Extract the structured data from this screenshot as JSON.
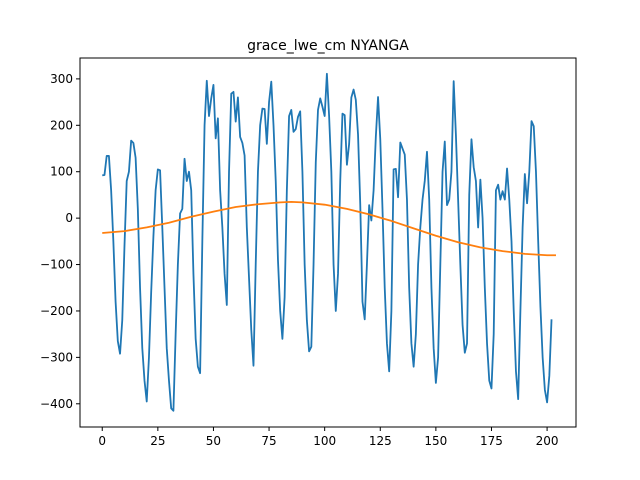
{
  "chart_data": {
    "type": "line",
    "title": "grace_lwe_cm NYANGA",
    "xlabel": "",
    "ylabel": "",
    "xlim": [
      -10,
      213
    ],
    "ylim": [
      -450,
      345
    ],
    "x_ticks": [
      0,
      25,
      50,
      75,
      100,
      125,
      150,
      175,
      200
    ],
    "y_ticks": [
      -400,
      -300,
      -200,
      -100,
      0,
      100,
      200,
      300
    ],
    "grid": false,
    "legend": "none",
    "series": [
      {
        "color": "#1f77b4",
        "points": [
          [
            0,
            92
          ],
          [
            1,
            93
          ],
          [
            2,
            134
          ],
          [
            3,
            134
          ],
          [
            4,
            60
          ],
          [
            5,
            -50
          ],
          [
            6,
            -180
          ],
          [
            7,
            -265
          ],
          [
            8,
            -292
          ],
          [
            9,
            -220
          ],
          [
            10,
            -60
          ],
          [
            11,
            80
          ],
          [
            12,
            100
          ],
          [
            13,
            167
          ],
          [
            14,
            162
          ],
          [
            15,
            130
          ],
          [
            16,
            20
          ],
          [
            17,
            -150
          ],
          [
            18,
            -280
          ],
          [
            19,
            -350
          ],
          [
            20,
            -395
          ],
          [
            21,
            -300
          ],
          [
            22,
            -160
          ],
          [
            23,
            -40
          ],
          [
            24,
            60
          ],
          [
            25,
            105
          ],
          [
            26,
            103
          ],
          [
            27,
            -20
          ],
          [
            28,
            -150
          ],
          [
            29,
            -280
          ],
          [
            30,
            -350
          ],
          [
            31,
            -410
          ],
          [
            32,
            -415
          ],
          [
            33,
            -250
          ],
          [
            34,
            -100
          ],
          [
            35,
            10
          ],
          [
            36,
            20
          ],
          [
            37,
            128
          ],
          [
            38,
            80
          ],
          [
            39,
            100
          ],
          [
            40,
            60
          ],
          [
            41,
            -120
          ],
          [
            42,
            -260
          ],
          [
            43,
            -320
          ],
          [
            44,
            -334
          ],
          [
            45,
            -50
          ],
          [
            46,
            200
          ],
          [
            47,
            296
          ],
          [
            48,
            220
          ],
          [
            49,
            258
          ],
          [
            50,
            287
          ],
          [
            51,
            172
          ],
          [
            52,
            215
          ],
          [
            53,
            60
          ],
          [
            54,
            -20
          ],
          [
            55,
            -120
          ],
          [
            56,
            -187
          ],
          [
            57,
            100
          ],
          [
            58,
            268
          ],
          [
            59,
            272
          ],
          [
            60,
            208
          ],
          [
            61,
            260
          ],
          [
            62,
            175
          ],
          [
            63,
            162
          ],
          [
            64,
            135
          ],
          [
            65,
            -20
          ],
          [
            66,
            -130
          ],
          [
            67,
            -240
          ],
          [
            68,
            -318
          ],
          [
            69,
            -100
          ],
          [
            70,
            100
          ],
          [
            71,
            200
          ],
          [
            72,
            236
          ],
          [
            73,
            235
          ],
          [
            74,
            160
          ],
          [
            75,
            250
          ],
          [
            76,
            294
          ],
          [
            77,
            200
          ],
          [
            78,
            80
          ],
          [
            79,
            -90
          ],
          [
            80,
            -200
          ],
          [
            81,
            -260
          ],
          [
            82,
            -170
          ],
          [
            83,
            60
          ],
          [
            84,
            220
          ],
          [
            85,
            233
          ],
          [
            86,
            186
          ],
          [
            87,
            192
          ],
          [
            88,
            218
          ],
          [
            89,
            230
          ],
          [
            90,
            100
          ],
          [
            91,
            -100
          ],
          [
            92,
            -220
          ],
          [
            93,
            -287
          ],
          [
            94,
            -277
          ],
          [
            95,
            -100
          ],
          [
            96,
            120
          ],
          [
            97,
            233
          ],
          [
            98,
            258
          ],
          [
            99,
            240
          ],
          [
            100,
            220
          ],
          [
            101,
            311
          ],
          [
            102,
            220
          ],
          [
            103,
            100
          ],
          [
            104,
            -100
          ],
          [
            105,
            -200
          ],
          [
            106,
            -120
          ],
          [
            107,
            80
          ],
          [
            108,
            225
          ],
          [
            109,
            222
          ],
          [
            110,
            115
          ],
          [
            111,
            160
          ],
          [
            112,
            260
          ],
          [
            113,
            277
          ],
          [
            114,
            255
          ],
          [
            115,
            180
          ],
          [
            116,
            30
          ],
          [
            117,
            -180
          ],
          [
            118,
            -218
          ],
          [
            119,
            -100
          ],
          [
            120,
            28
          ],
          [
            121,
            -5
          ],
          [
            122,
            60
          ],
          [
            123,
            175
          ],
          [
            124,
            261
          ],
          [
            125,
            170
          ],
          [
            126,
            20
          ],
          [
            127,
            -150
          ],
          [
            128,
            -270
          ],
          [
            129,
            -330
          ],
          [
            130,
            -200
          ],
          [
            131,
            105
          ],
          [
            132,
            106
          ],
          [
            133,
            45
          ],
          [
            134,
            163
          ],
          [
            135,
            150
          ],
          [
            136,
            137
          ],
          [
            137,
            40
          ],
          [
            138,
            -150
          ],
          [
            139,
            -270
          ],
          [
            140,
            -320
          ],
          [
            141,
            -250
          ],
          [
            142,
            -100
          ],
          [
            143,
            -20
          ],
          [
            144,
            40
          ],
          [
            145,
            80
          ],
          [
            146,
            143
          ],
          [
            147,
            40
          ],
          [
            148,
            -150
          ],
          [
            149,
            -280
          ],
          [
            150,
            -355
          ],
          [
            151,
            -300
          ],
          [
            152,
            -100
          ],
          [
            153,
            100
          ],
          [
            154,
            165
          ],
          [
            155,
            28
          ],
          [
            156,
            40
          ],
          [
            157,
            100
          ],
          [
            158,
            295
          ],
          [
            159,
            180
          ],
          [
            160,
            40
          ],
          [
            161,
            -100
          ],
          [
            162,
            -230
          ],
          [
            163,
            -290
          ],
          [
            164,
            -270
          ],
          [
            165,
            50
          ],
          [
            166,
            170
          ],
          [
            167,
            110
          ],
          [
            168,
            80
          ],
          [
            169,
            -20
          ],
          [
            170,
            83
          ],
          [
            171,
            0
          ],
          [
            172,
            -150
          ],
          [
            173,
            -270
          ],
          [
            174,
            -350
          ],
          [
            175,
            -367
          ],
          [
            176,
            -250
          ],
          [
            177,
            60
          ],
          [
            178,
            72
          ],
          [
            179,
            40
          ],
          [
            180,
            58
          ],
          [
            181,
            40
          ],
          [
            182,
            107
          ],
          [
            183,
            40
          ],
          [
            184,
            -50
          ],
          [
            185,
            -200
          ],
          [
            186,
            -330
          ],
          [
            187,
            -390
          ],
          [
            188,
            -200
          ],
          [
            189,
            -20
          ],
          [
            190,
            95
          ],
          [
            191,
            32
          ],
          [
            192,
            100
          ],
          [
            193,
            209
          ],
          [
            194,
            198
          ],
          [
            195,
            100
          ],
          [
            196,
            -50
          ],
          [
            197,
            -190
          ],
          [
            198,
            -300
          ],
          [
            199,
            -370
          ],
          [
            200,
            -397
          ],
          [
            201,
            -340
          ],
          [
            202,
            -218
          ]
        ]
      },
      {
        "color": "#ff7f0e",
        "points": [
          [
            0,
            -32
          ],
          [
            10,
            -28
          ],
          [
            20,
            -20
          ],
          [
            30,
            -10
          ],
          [
            40,
            3
          ],
          [
            50,
            14
          ],
          [
            60,
            24
          ],
          [
            70,
            30
          ],
          [
            80,
            34
          ],
          [
            85,
            35
          ],
          [
            90,
            34
          ],
          [
            100,
            29
          ],
          [
            110,
            20
          ],
          [
            120,
            8
          ],
          [
            130,
            -6
          ],
          [
            140,
            -22
          ],
          [
            150,
            -38
          ],
          [
            160,
            -52
          ],
          [
            170,
            -63
          ],
          [
            180,
            -71
          ],
          [
            190,
            -77
          ],
          [
            200,
            -80
          ],
          [
            204,
            -80
          ]
        ]
      }
    ]
  }
}
